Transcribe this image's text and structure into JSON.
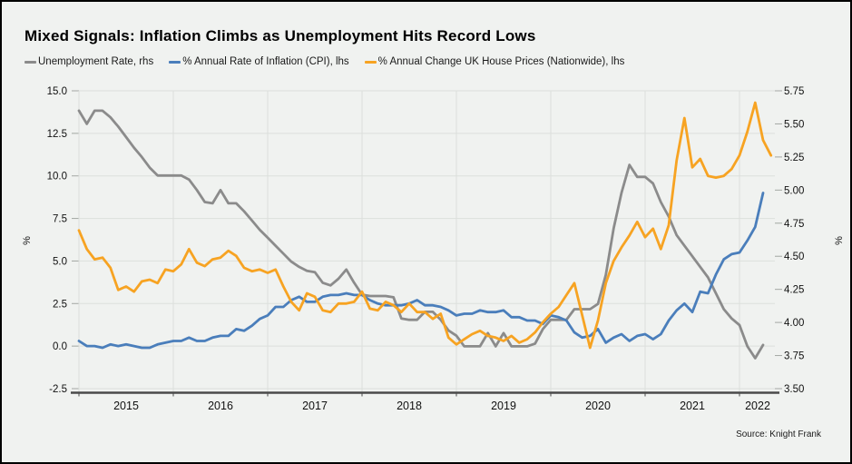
{
  "title": "Mixed Signals: Inflation Climbs as Unemployment Hits Record Lows",
  "source_note": "Source: Knight Frank",
  "chart_data": {
    "type": "line",
    "x_start": "2015-01",
    "x_frequency": "monthly",
    "grid": true,
    "legend_position": "top",
    "left_axis": {
      "label": "%",
      "min": -2.5,
      "max": 15.0,
      "tick_step": 2.5,
      "ticks": [
        {
          "v": 15.0,
          "label": "15.0"
        },
        {
          "v": 12.5,
          "label": "12.5"
        },
        {
          "v": 10.0,
          "label": "10.0"
        },
        {
          "v": 7.5,
          "label": "7.5"
        },
        {
          "v": 5.0,
          "label": "5.0"
        },
        {
          "v": 2.5,
          "label": "2.5"
        },
        {
          "v": 0.0,
          "label": "0.0"
        },
        {
          "v": -2.5,
          "label": "-2.5"
        }
      ]
    },
    "right_axis": {
      "label": "%",
      "min": 3.5,
      "max": 5.75,
      "tick_step": 0.25,
      "ticks": [
        {
          "v": 5.75,
          "label": "5.75"
        },
        {
          "v": 5.5,
          "label": "5.50"
        },
        {
          "v": 5.25,
          "label": "5.25"
        },
        {
          "v": 5.0,
          "label": "5.00"
        },
        {
          "v": 4.75,
          "label": "4.75"
        },
        {
          "v": 4.5,
          "label": "4.50"
        },
        {
          "v": 4.25,
          "label": "4.25"
        },
        {
          "v": 4.0,
          "label": "4.00"
        },
        {
          "v": 3.75,
          "label": "3.75"
        },
        {
          "v": 3.5,
          "label": "3.50"
        }
      ]
    },
    "x_ticks": [
      {
        "year": "2015",
        "month_index": 0
      },
      {
        "year": "2016",
        "month_index": 12
      },
      {
        "year": "2017",
        "month_index": 24
      },
      {
        "year": "2018",
        "month_index": 36
      },
      {
        "year": "2019",
        "month_index": 48
      },
      {
        "year": "2020",
        "month_index": 60
      },
      {
        "year": "2021",
        "month_index": 72
      },
      {
        "year": "2022",
        "month_index": 84
      }
    ],
    "series": [
      {
        "id": "unemployment",
        "name": "Unemployment Rate, rhs",
        "axis": "right",
        "color": "#8b8b8b",
        "values": [
          5.6,
          5.5,
          5.6,
          5.6,
          5.55,
          5.48,
          5.4,
          5.32,
          5.25,
          5.17,
          5.11,
          5.11,
          5.11,
          5.11,
          5.08,
          5.0,
          4.91,
          4.9,
          5.0,
          4.9,
          4.9,
          4.84,
          4.77,
          4.7,
          4.64,
          4.58,
          4.52,
          4.46,
          4.42,
          4.39,
          4.38,
          4.3,
          4.28,
          4.33,
          4.4,
          4.3,
          4.21,
          4.2,
          4.2,
          4.2,
          4.19,
          4.03,
          4.02,
          4.02,
          4.08,
          4.08,
          4.02,
          3.94,
          3.9,
          3.82,
          3.82,
          3.82,
          3.92,
          3.82,
          3.92,
          3.82,
          3.82,
          3.82,
          3.84,
          3.95,
          4.02,
          4.02,
          4.02,
          4.1,
          4.1,
          4.1,
          4.14,
          4.36,
          4.71,
          4.98,
          5.19,
          5.1,
          5.1,
          5.05,
          4.91,
          4.8,
          4.66,
          4.58,
          4.5,
          4.42,
          4.34,
          4.22,
          4.1,
          4.03,
          3.98,
          3.82,
          3.73,
          3.83
        ]
      },
      {
        "id": "cpi-inflation",
        "name": "% Annual Rate of Inflation (CPI), lhs",
        "axis": "left",
        "color": "#4a7ebb",
        "values": [
          0.3,
          0.0,
          0.0,
          -0.1,
          0.1,
          0.0,
          0.1,
          0.0,
          -0.1,
          -0.1,
          0.1,
          0.2,
          0.3,
          0.3,
          0.5,
          0.3,
          0.3,
          0.5,
          0.6,
          0.6,
          1.0,
          0.9,
          1.2,
          1.6,
          1.8,
          2.3,
          2.3,
          2.7,
          2.9,
          2.6,
          2.6,
          2.9,
          3.0,
          3.0,
          3.1,
          3.0,
          3.0,
          2.7,
          2.5,
          2.4,
          2.4,
          2.4,
          2.5,
          2.7,
          2.4,
          2.4,
          2.3,
          2.1,
          1.8,
          1.9,
          1.9,
          2.1,
          2.0,
          2.0,
          2.1,
          1.7,
          1.7,
          1.5,
          1.5,
          1.3,
          1.8,
          1.7,
          1.5,
          0.8,
          0.5,
          0.6,
          1.0,
          0.2,
          0.5,
          0.7,
          0.3,
          0.6,
          0.7,
          0.4,
          0.7,
          1.5,
          2.1,
          2.5,
          2.0,
          3.2,
          3.1,
          4.2,
          5.1,
          5.4,
          5.5,
          6.2,
          7.0,
          9.0
        ]
      },
      {
        "id": "house-prices",
        "name": "% Annual Change UK House Prices (Nationwide), lhs",
        "axis": "left",
        "color": "#f7a322",
        "values": [
          6.8,
          5.7,
          5.1,
          5.2,
          4.6,
          3.3,
          3.5,
          3.2,
          3.8,
          3.9,
          3.7,
          4.5,
          4.4,
          4.8,
          5.7,
          4.9,
          4.7,
          5.1,
          5.2,
          5.6,
          5.3,
          4.6,
          4.4,
          4.5,
          4.3,
          4.5,
          3.5,
          2.6,
          2.1,
          3.1,
          2.9,
          2.1,
          2.0,
          2.5,
          2.5,
          2.6,
          3.2,
          2.2,
          2.1,
          2.6,
          2.4,
          2.0,
          2.5,
          2.0,
          2.0,
          1.6,
          1.9,
          0.5,
          0.1,
          0.4,
          0.7,
          0.9,
          0.6,
          0.5,
          0.3,
          0.6,
          0.2,
          0.4,
          0.8,
          1.4,
          1.9,
          2.3,
          3.0,
          3.7,
          1.8,
          -0.1,
          1.5,
          3.7,
          5.0,
          5.8,
          6.5,
          7.3,
          6.4,
          6.9,
          5.7,
          7.1,
          10.9,
          13.4,
          10.5,
          11.0,
          10.0,
          9.9,
          10.0,
          10.4,
          11.2,
          12.6,
          14.3,
          12.1,
          11.2
        ]
      }
    ],
    "colors": {
      "background": "#f0f2f0",
      "grid": "#dcdfdc",
      "tick": "#a3a7a3",
      "axis": "#4a4a4a",
      "text": "#111111"
    }
  }
}
